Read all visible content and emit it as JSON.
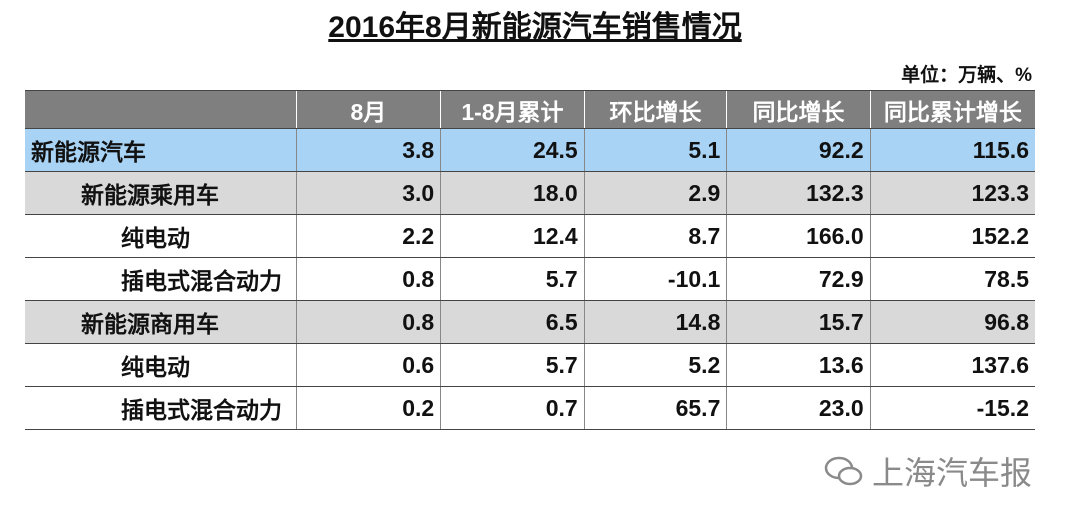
{
  "header": {
    "title": "2016年8月新能源汽车销售情况",
    "unit": "单位：万辆、%"
  },
  "table": {
    "columns": [
      "",
      "8月",
      "1-8月累计",
      "环比增长",
      "同比增长",
      "同比累计增长"
    ],
    "rows": [
      [
        "新能源汽车",
        "3.8",
        "24.5",
        "5.1",
        "92.2",
        "115.6"
      ],
      [
        "新能源乘用车",
        "3.0",
        "18.0",
        "2.9",
        "132.3",
        "123.3"
      ],
      [
        "纯电动",
        "2.2",
        "12.4",
        "8.7",
        "166.0",
        "152.2"
      ],
      [
        "插电式混合动力",
        "0.8",
        "5.7",
        "-10.1",
        "72.9",
        "78.5"
      ],
      [
        "新能源商用车",
        "0.8",
        "6.5",
        "14.8",
        "15.7",
        "96.8"
      ],
      [
        "纯电动",
        "0.6",
        "5.7",
        "5.2",
        "13.6",
        "137.6"
      ],
      [
        "插电式混合动力",
        "0.2",
        "0.7",
        "65.7",
        "23.0",
        "-15.2"
      ]
    ]
  },
  "watermark": "上海汽车报"
}
